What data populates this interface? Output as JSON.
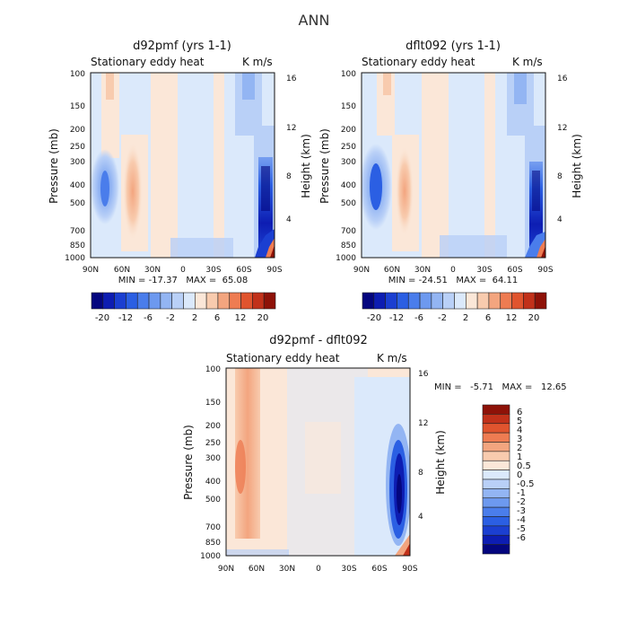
{
  "figure": {
    "title": "ANN"
  },
  "colors": {
    "scale": [
      "#04067e",
      "#0d1db2",
      "#1b3fd1",
      "#2b5fe3",
      "#4a7deb",
      "#6d99ef",
      "#93b5f3",
      "#b9d0f7",
      "#dbe9fb",
      "#fbe7d8",
      "#f8cbae",
      "#f3a57f",
      "#ee7c52",
      "#e0542e",
      "#c1311a",
      "#8e1208"
    ],
    "axis": "#111111"
  },
  "chart_data": [
    {
      "type": "heatmap",
      "title": "d92pmf (yrs 1-1)",
      "subtitle_left": "Stationary eddy heat",
      "subtitle_right": "K m/s",
      "ylabel": "Pressure (mb)",
      "ylabel_right": "Height (km)",
      "x_ticks": [
        "90N",
        "60N",
        "30N",
        "0",
        "30S",
        "60S",
        "90S"
      ],
      "y_ticks": [
        "100",
        "150",
        "200",
        "250",
        "300",
        "400",
        "500",
        "700",
        "850",
        "1000"
      ],
      "y_ticks_right": [
        "16",
        "12",
        "8",
        "4"
      ],
      "stats": "MIN = -17.37   MAX =  65.08",
      "min": -17.37,
      "max": 65.08,
      "colorbar_labels": [
        "-20",
        "-12",
        "-6",
        "-2",
        "2",
        "6",
        "12",
        "20"
      ]
    },
    {
      "type": "heatmap",
      "title": "dflt092 (yrs 1-1)",
      "subtitle_left": "Stationary eddy heat",
      "subtitle_right": "K m/s",
      "ylabel": "Pressure (mb)",
      "ylabel_right": "Height (km)",
      "x_ticks": [
        "90N",
        "60N",
        "30N",
        "0",
        "30S",
        "60S",
        "90S"
      ],
      "y_ticks": [
        "100",
        "150",
        "200",
        "250",
        "300",
        "400",
        "500",
        "700",
        "850",
        "1000"
      ],
      "y_ticks_right": [
        "16",
        "12",
        "8",
        "4"
      ],
      "stats": "MIN = -24.51   MAX =  64.11",
      "min": -24.51,
      "max": 64.11,
      "colorbar_labels": [
        "-20",
        "-12",
        "-6",
        "-2",
        "2",
        "6",
        "12",
        "20"
      ]
    },
    {
      "type": "heatmap",
      "title": "d92pmf - dflt092",
      "subtitle_left": "Stationary eddy heat",
      "subtitle_right": "K m/s",
      "ylabel": "Pressure (mb)",
      "ylabel_right": "Height (km)",
      "x_ticks": [
        "90N",
        "60N",
        "30N",
        "0",
        "30S",
        "60S",
        "90S"
      ],
      "y_ticks": [
        "100",
        "150",
        "200",
        "250",
        "300",
        "400",
        "500",
        "700",
        "850",
        "1000"
      ],
      "y_ticks_right": [
        "16",
        "12",
        "8",
        "4"
      ],
      "stats": "MIN =   -5.71   MAX =   12.65",
      "min": -5.71,
      "max": 12.65,
      "colorbar_labels": [
        "6",
        "5",
        "4",
        "3",
        "2",
        "1",
        "0.5",
        "0",
        "-0.5",
        "-1",
        "-2",
        "-3",
        "-4",
        "-5",
        "-6"
      ]
    }
  ]
}
